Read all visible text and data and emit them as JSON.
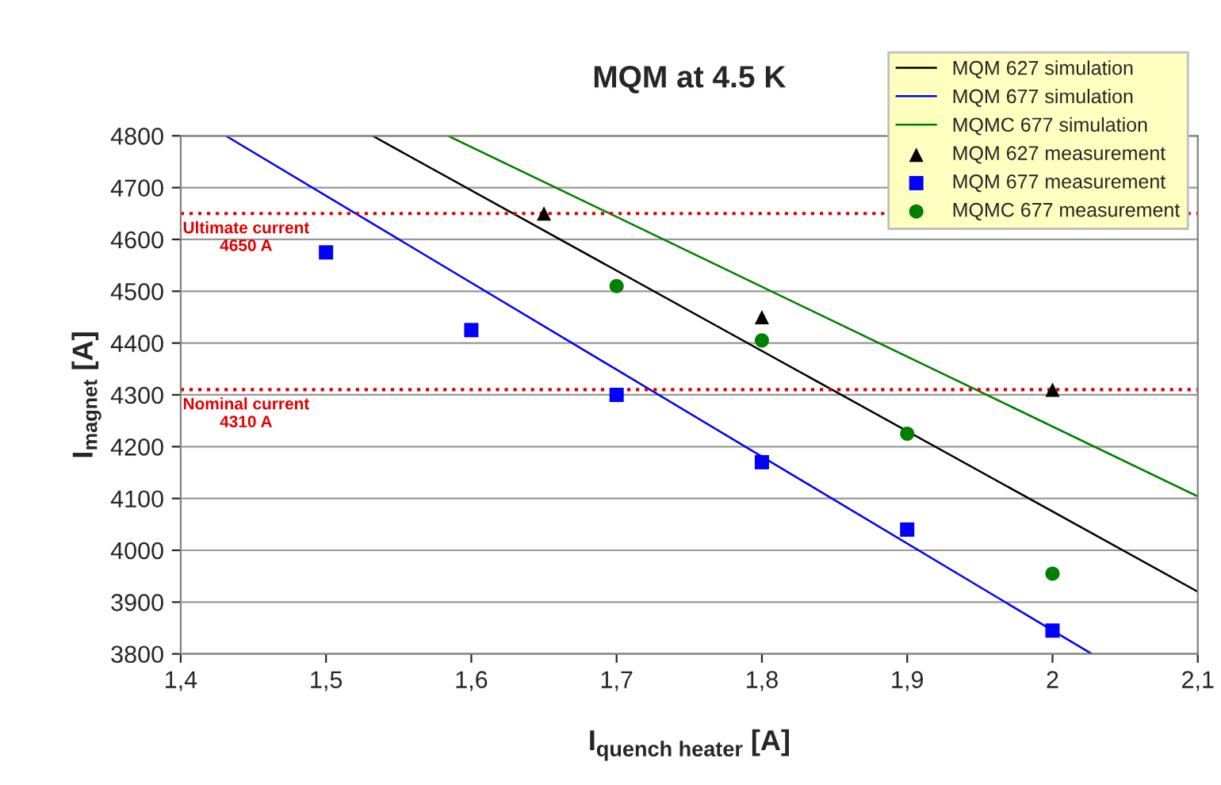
{
  "chart_data": {
    "type": "scatter",
    "title": "MQM at 4.5 K",
    "xlabel": "I$_{quench heater}$ [A]",
    "ylabel": "I$_{magnet}$ [A]",
    "series": [
      {
        "name": "MQM 627 simulation",
        "type": "line",
        "color": "#000000",
        "x": [
          1.532,
          2.1
        ],
        "values": [
          4800,
          3920
        ],
        "marker": "none"
      },
      {
        "name": "MQM 677 simulation",
        "type": "line",
        "color": "#0000ff",
        "x": [
          1.431,
          2.027
        ],
        "values": [
          4800,
          3800
        ],
        "marker": "none"
      },
      {
        "name": "MQMC 677 simulation",
        "type": "line",
        "color": "#008000",
        "x": [
          1.584,
          2.1
        ],
        "values": [
          4800,
          4104
        ],
        "marker": "none"
      },
      {
        "name": "MQM 627 measurement",
        "color": "#000000",
        "marker": "triangle",
        "x": [
          1.65,
          1.8,
          2.0
        ],
        "values": [
          4650,
          4450,
          4310
        ]
      },
      {
        "name": "MQM 677 measurement",
        "color": "#0000ff",
        "marker": "square",
        "x": [
          1.5,
          1.6,
          1.7,
          1.8,
          1.9,
          2.0
        ],
        "values": [
          4575,
          4425,
          4300,
          4170,
          4040,
          3845
        ]
      },
      {
        "name": "MQMC 677 measurement",
        "color": "#008000",
        "marker": "circle",
        "x": [
          1.7,
          1.8,
          1.9,
          2.0
        ],
        "values": [
          4510,
          4405,
          4225,
          3955
        ]
      }
    ],
    "xlim": [
      1.4,
      2.1
    ],
    "xticks": [
      {
        "value": 1.4,
        "label": "1,4"
      },
      {
        "value": 1.5,
        "label": "1,5"
      },
      {
        "value": 1.6,
        "label": "1,6"
      },
      {
        "value": 1.7,
        "label": "1,7"
      },
      {
        "value": 1.8,
        "label": "1,8"
      },
      {
        "value": 1.9,
        "label": "1,9"
      },
      {
        "value": 2.0,
        "label": "2"
      },
      {
        "value": 2.1,
        "label": "2,1"
      }
    ],
    "ylim": [
      3800,
      4800
    ],
    "yticks": [
      3800,
      3900,
      4000,
      4100,
      4200,
      4300,
      4400,
      4500,
      4600,
      4700,
      4800
    ],
    "ref_lines": [
      {
        "axis": "y",
        "value": 4650,
        "label": "Ultimate current\n4650 A",
        "color": "#e00000",
        "line_style": "dotted"
      },
      {
        "axis": "y",
        "value": 4310,
        "label": "Nominal current\n4310 A",
        "color": "#e00000",
        "line_style": "dotted"
      }
    ],
    "grid": "y",
    "legend": "top right"
  }
}
